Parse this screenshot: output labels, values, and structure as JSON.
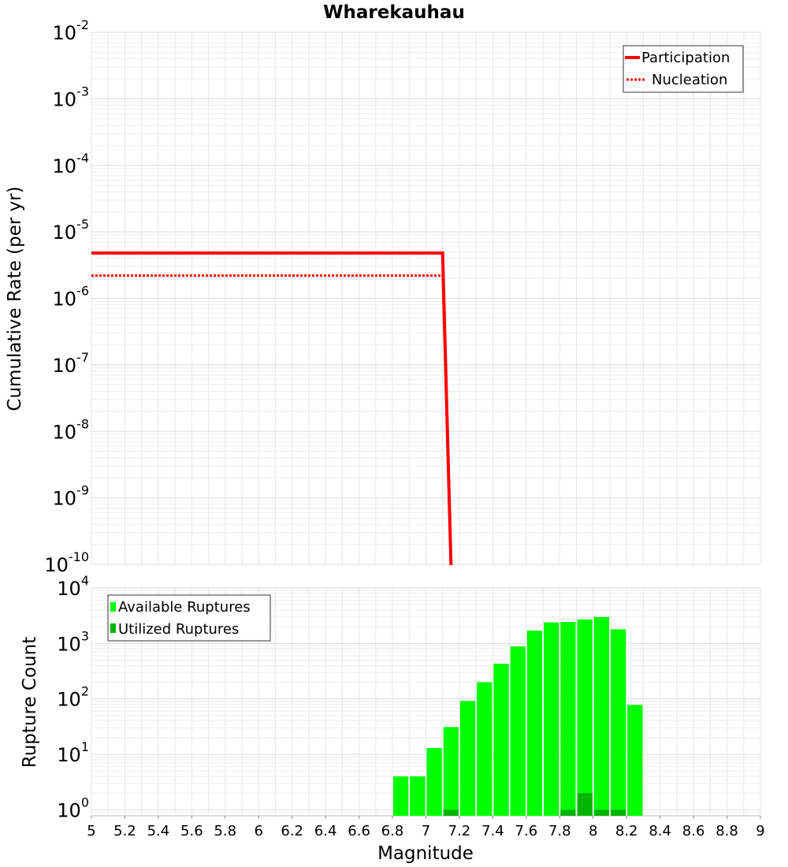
{
  "chart_data": {
    "title": "Wharekauhau",
    "xlabel": "Magnitude",
    "xlim": [
      5,
      9
    ],
    "xticks": [
      "5",
      "5.2",
      "5.4",
      "5.6",
      "5.8",
      "6",
      "6.2",
      "6.4",
      "6.6",
      "6.8",
      "7",
      "7.2",
      "7.4",
      "7.6",
      "7.8",
      "8",
      "8.2",
      "8.4",
      "8.6",
      "8.8",
      "9"
    ],
    "grid": true,
    "panels": [
      {
        "type": "line",
        "ylabel": "Cumulative Rate (per yr)",
        "yscale": "log",
        "ylim": [
          1e-10,
          0.01
        ],
        "yticks": [
          {
            "base": "10",
            "exp": "-2"
          },
          {
            "base": "10",
            "exp": "-3"
          },
          {
            "base": "10",
            "exp": "-4"
          },
          {
            "base": "10",
            "exp": "-5"
          },
          {
            "base": "10",
            "exp": "-6"
          },
          {
            "base": "10",
            "exp": "-7"
          },
          {
            "base": "10",
            "exp": "-8"
          },
          {
            "base": "10",
            "exp": "-9"
          },
          {
            "base": "10",
            "exp": "-10"
          }
        ],
        "legend_position": "top-right",
        "series": [
          {
            "name": "Participation",
            "style": "solid",
            "color": "#ff0000",
            "x": [
              5,
              7.1,
              7.15
            ],
            "y": [
              4.8e-06,
              4.8e-06,
              1e-10
            ]
          },
          {
            "name": "Nucleation",
            "style": "dotted",
            "color": "#ff0000",
            "x": [
              5,
              7.1,
              7.15
            ],
            "y": [
              2.2e-06,
              2.2e-06,
              1e-10
            ]
          }
        ]
      },
      {
        "type": "bar",
        "ylabel": "Rupture Count",
        "yscale": "log",
        "ylim": [
          0.78,
          10000
        ],
        "yticks": [
          {
            "base": "10",
            "exp": "4"
          },
          {
            "base": "10",
            "exp": "3"
          },
          {
            "base": "10",
            "exp": "2"
          },
          {
            "base": "10",
            "exp": "1"
          },
          {
            "base": "10",
            "exp": "0"
          }
        ],
        "legend_position": "top-left",
        "bin_width": 0.1,
        "bin_centers": [
          6.85,
          6.95,
          7.05,
          7.15,
          7.25,
          7.35,
          7.45,
          7.55,
          7.65,
          7.75,
          7.85,
          7.95,
          8.05,
          8.15,
          8.25
        ],
        "series": [
          {
            "name": "Available Ruptures",
            "color": "#00ff00",
            "values": [
              4,
              4,
              13,
              31,
              92,
              200,
              430,
              880,
              1700,
              2400,
              2450,
              2700,
              3000,
              1800,
              78
            ]
          },
          {
            "name": "Utilized Ruptures",
            "color": "#00b400",
            "values": [
              0,
              0,
              0,
              1,
              0,
              0,
              0,
              0,
              0,
              0,
              1,
              2,
              1,
              1,
              0
            ]
          }
        ]
      }
    ]
  }
}
